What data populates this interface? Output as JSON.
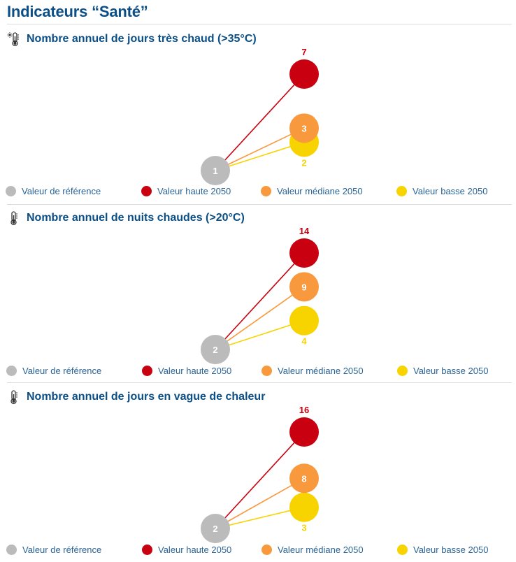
{
  "page": {
    "title": "Indicateurs “Santé”"
  },
  "colors": {
    "reference": "#bbbbbb",
    "haute": "#c8000f",
    "mediane": "#f7993c",
    "basse": "#f7d300",
    "title": "#0b4f86",
    "legend_text": "#2a6496"
  },
  "legend": {
    "reference": "Valeur de référence",
    "haute": "Valeur haute 2050",
    "mediane": "Valeur médiane 2050",
    "basse": "Valeur basse 2050"
  },
  "sections": [
    {
      "title": "Nombre annuel de jours très chaud (>35°C)",
      "icon": "thermometer-sun-icon"
    },
    {
      "title": "Nombre annuel de nuits chaudes (>20°C)",
      "icon": "thermometer-icon"
    },
    {
      "title": "Nombre annuel de jours en vague de chaleur",
      "icon": "thermometer-icon"
    }
  ],
  "chart_data": [
    {
      "type": "scatter",
      "title": "Nombre annuel de jours très chaud (>35°C)",
      "series": [
        {
          "name": "Valeur de référence",
          "values": [
            1
          ]
        },
        {
          "name": "Valeur haute 2050",
          "values": [
            7
          ]
        },
        {
          "name": "Valeur médiane 2050",
          "values": [
            3
          ]
        },
        {
          "name": "Valeur basse 2050",
          "values": [
            2
          ]
        }
      ]
    },
    {
      "type": "scatter",
      "title": "Nombre annuel de nuits chaudes (>20°C)",
      "series": [
        {
          "name": "Valeur de référence",
          "values": [
            2
          ]
        },
        {
          "name": "Valeur haute 2050",
          "values": [
            14
          ]
        },
        {
          "name": "Valeur médiane 2050",
          "values": [
            9
          ]
        },
        {
          "name": "Valeur basse 2050",
          "values": [
            4
          ]
        }
      ]
    },
    {
      "type": "scatter",
      "title": "Nombre annuel de jours en vague de chaleur",
      "series": [
        {
          "name": "Valeur de référence",
          "values": [
            2
          ]
        },
        {
          "name": "Valeur haute 2050",
          "values": [
            16
          ]
        },
        {
          "name": "Valeur médiane 2050",
          "values": [
            8
          ]
        },
        {
          "name": "Valeur basse 2050",
          "values": [
            3
          ]
        }
      ]
    }
  ]
}
